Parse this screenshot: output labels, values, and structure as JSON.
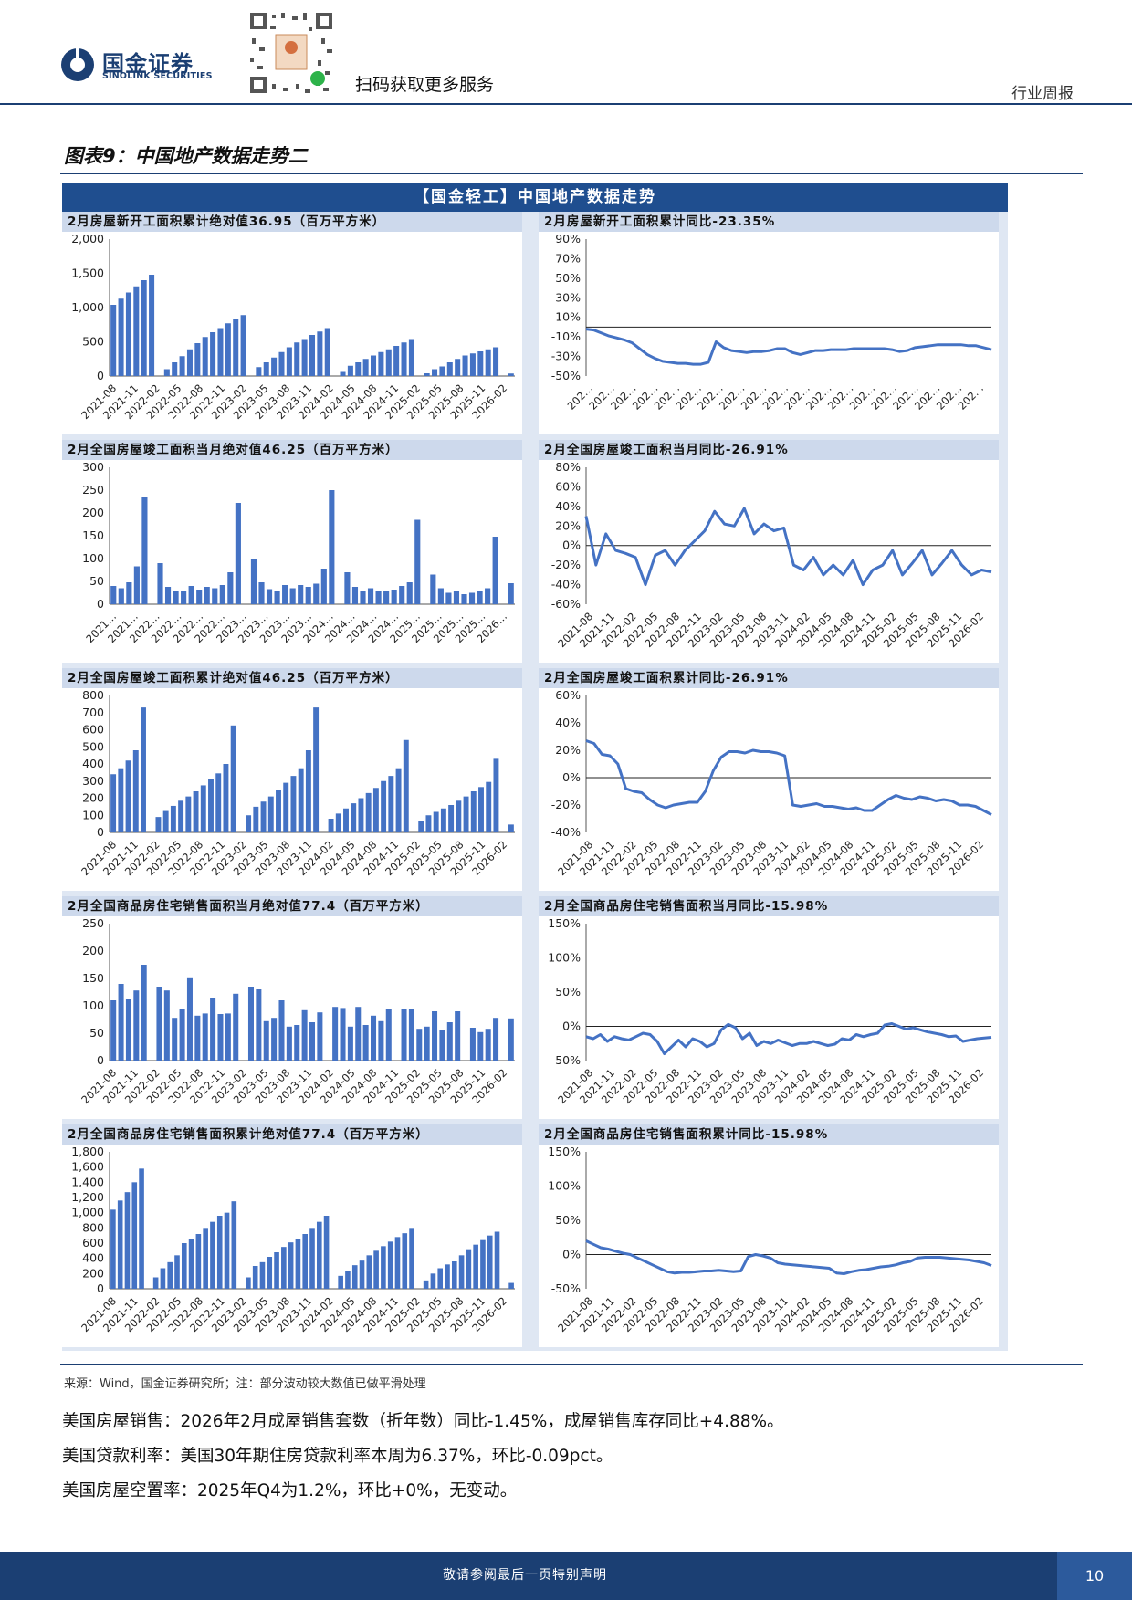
{
  "header": {
    "logo_cn": "国金证券",
    "logo_en": "SINOLINK SECURITIES",
    "qr_caption": "扫码获取更多服务",
    "doc_type": "行业周报"
  },
  "figure": {
    "title": "图表9：中国地产数据走势二",
    "panel_title": "【国金轻工】中国地产数据走势"
  },
  "colors": {
    "bar": "#4472c4",
    "line": "#4472c4",
    "navy": "#1b3f73"
  },
  "chart_data": [
    {
      "type": "bar",
      "title": "2月房屋新开工面积累计绝对值36.95（百万平方米）",
      "yticks": [
        "2,000",
        "1,500",
        "1,000",
        "500",
        "0"
      ],
      "ylim": [
        0,
        2000
      ],
      "xticks": [
        "2021-08",
        "2021-11",
        "2022-02",
        "2022-05",
        "2022-08",
        "2022-11",
        "2023-02",
        "2023-05",
        "2023-08",
        "2023-11",
        "2024-02",
        "2024-05",
        "2024-08",
        "2024-11",
        "2025-02",
        "2025-05",
        "2025-08",
        "2025-11",
        "2026-02"
      ],
      "start": "2021-08",
      "values": [
        1040,
        1130,
        1220,
        1310,
        1400,
        1480,
        null,
        100,
        200,
        290,
        390,
        480,
        570,
        640,
        700,
        770,
        840,
        890,
        null,
        130,
        200,
        270,
        350,
        420,
        490,
        540,
        600,
        650,
        700,
        null,
        60,
        150,
        200,
        250,
        300,
        350,
        390,
        440,
        490,
        540,
        null,
        40,
        100,
        140,
        200,
        250,
        300,
        330,
        360,
        390,
        420,
        null,
        37
      ]
    },
    {
      "type": "line",
      "title": "2月房屋新开工面积累计同比-23.35%",
      "yticks": [
        "90%",
        "70%",
        "50%",
        "30%",
        "10%",
        "-10%",
        "-30%",
        "-50%"
      ],
      "ylim": [
        -50,
        90
      ],
      "zero": 0,
      "xticks": [
        "202…",
        "202…",
        "202…",
        "202…",
        "202…",
        "202…",
        "202…",
        "202…",
        "202…",
        "202…",
        "202…",
        "202…",
        "202…",
        "202…",
        "202…",
        "202…",
        "202…",
        "202…",
        "202…"
      ],
      "values": [
        -2,
        -3,
        -6,
        -9,
        -11,
        -13,
        -16,
        -22,
        -28,
        -32,
        -35,
        -36,
        -37,
        -37,
        -38,
        -38,
        -36,
        -15,
        -21,
        -24,
        -25,
        -26,
        -25,
        -25,
        -24,
        -22,
        -22,
        -26,
        -28,
        -26,
        -24,
        -24,
        -23,
        -23,
        -23,
        -22,
        -22,
        -22,
        -22,
        -22,
        -23,
        -25,
        -24,
        -21,
        -20,
        -19,
        -18,
        -18,
        -18,
        -18,
        -19,
        -19,
        -21,
        -23
      ]
    },
    {
      "type": "bar",
      "title": "2月全国房屋竣工面积当月绝对值46.25（百万平方米）",
      "yticks": [
        "300",
        "250",
        "200",
        "150",
        "100",
        "50",
        "0"
      ],
      "ylim": [
        0,
        300
      ],
      "xticks": [
        "2021…",
        "2021…",
        "2022…",
        "2022…",
        "2022…",
        "2022…",
        "2023…",
        "2023…",
        "2023…",
        "2023…",
        "2024…",
        "2024…",
        "2024…",
        "2024…",
        "2025…",
        "2025…",
        "2025…",
        "2025…",
        "2026…"
      ],
      "values": [
        40,
        35,
        48,
        83,
        235,
        null,
        90,
        38,
        28,
        30,
        40,
        32,
        38,
        35,
        42,
        70,
        222,
        null,
        100,
        48,
        33,
        30,
        42,
        35,
        42,
        38,
        45,
        78,
        250,
        null,
        70,
        38,
        30,
        35,
        30,
        28,
        32,
        40,
        48,
        185,
        null,
        65,
        35,
        25,
        30,
        22,
        25,
        28,
        35,
        148,
        null,
        46
      ]
    },
    {
      "type": "line",
      "title": "2月全国房屋竣工面积当月同比-26.91%",
      "yticks": [
        "80%",
        "60%",
        "40%",
        "20%",
        "0%",
        "-20%",
        "-40%",
        "-60%"
      ],
      "ylim": [
        -60,
        80
      ],
      "zero": 0,
      "xticks": [
        "2021-08",
        "2021-11",
        "2022-02",
        "2022-05",
        "2022-08",
        "2022-11",
        "2023-02",
        "2023-05",
        "2023-08",
        "2023-11",
        "2024-02",
        "2024-05",
        "2024-08",
        "2024-11",
        "2025-02",
        "2025-05",
        "2025-08",
        "2025-11",
        "2026-02"
      ],
      "values": [
        30,
        -20,
        12,
        -5,
        -8,
        -12,
        -40,
        -10,
        -5,
        -20,
        -5,
        5,
        15,
        35,
        22,
        20,
        38,
        12,
        22,
        15,
        18,
        -20,
        -25,
        -12,
        -30,
        -20,
        -30,
        -15,
        -40,
        -25,
        -20,
        -5,
        -30,
        -18,
        -5,
        -30,
        -18,
        -5,
        -20,
        -30,
        -25,
        -27
      ]
    },
    {
      "type": "bar",
      "title": "2月全国房屋竣工面积累计绝对值46.25（百万平方米）",
      "yticks": [
        "800",
        "700",
        "600",
        "500",
        "400",
        "300",
        "200",
        "100",
        "0"
      ],
      "ylim": [
        0,
        800
      ],
      "xticks": [
        "2021-08",
        "2021-11",
        "2022-02",
        "2022-05",
        "2022-08",
        "2022-11",
        "2023-02",
        "2023-05",
        "2023-08",
        "2023-11",
        "2024-02",
        "2024-05",
        "2024-08",
        "2024-11",
        "2025-02",
        "2025-05",
        "2025-08",
        "2025-11",
        "2026-02"
      ],
      "values": [
        340,
        375,
        420,
        480,
        730,
        null,
        90,
        125,
        155,
        185,
        210,
        240,
        275,
        310,
        345,
        400,
        625,
        null,
        100,
        150,
        180,
        210,
        250,
        290,
        330,
        375,
        480,
        730,
        null,
        80,
        110,
        140,
        170,
        200,
        230,
        260,
        300,
        330,
        375,
        540,
        null,
        65,
        100,
        120,
        140,
        160,
        185,
        210,
        240,
        265,
        295,
        430,
        null,
        46
      ]
    },
    {
      "type": "line",
      "title": "2月全国房屋竣工面积累计同比-26.91%",
      "yticks": [
        "60%",
        "40%",
        "20%",
        "0%",
        "-20%",
        "-40%"
      ],
      "ylim": [
        -40,
        60
      ],
      "zero": 0,
      "xticks": [
        "2021-08",
        "2021-11",
        "2022-02",
        "2022-05",
        "2022-08",
        "2022-11",
        "2023-02",
        "2023-05",
        "2023-08",
        "2023-11",
        "2024-02",
        "2024-05",
        "2024-08",
        "2024-11",
        "2025-02",
        "2025-05",
        "2025-08",
        "2025-11",
        "2026-02"
      ],
      "values": [
        27,
        25,
        17,
        16,
        10,
        -8,
        -10,
        -11,
        -16,
        -20,
        -22,
        -20,
        -19,
        -18,
        -18,
        -10,
        5,
        15,
        19,
        19,
        18,
        20,
        19,
        19,
        18,
        16,
        -20,
        -21,
        -20,
        -19,
        -21,
        -21,
        -22,
        -23,
        -22,
        -24,
        -24,
        -20,
        -16,
        -13,
        -15,
        -16,
        -14,
        -15,
        -17,
        -16,
        -17,
        -20,
        -20,
        -21,
        -24,
        -27
      ]
    },
    {
      "type": "bar",
      "title": "2月全国商品房住宅销售面积当月绝对值77.4（百万平方米）",
      "yticks": [
        "250",
        "200",
        "150",
        "100",
        "50",
        "0"
      ],
      "ylim": [
        0,
        250
      ],
      "xticks": [
        "2021-08",
        "2021-11",
        "2022-02",
        "2022-05",
        "2022-08",
        "2022-11",
        "2023-02",
        "2023-05",
        "2023-08",
        "2023-11",
        "2024-02",
        "2024-05",
        "2024-08",
        "2024-11",
        "2025-02",
        "2025-05",
        "2025-08",
        "2025-11",
        "2026-02"
      ],
      "values": [
        110,
        140,
        112,
        128,
        175,
        null,
        135,
        128,
        78,
        95,
        152,
        82,
        86,
        115,
        85,
        86,
        122,
        null,
        135,
        130,
        72,
        78,
        110,
        62,
        65,
        92,
        70,
        88,
        null,
        98,
        96,
        62,
        98,
        65,
        82,
        72,
        95,
        null,
        94,
        95,
        58,
        62,
        90,
        55,
        70,
        90,
        null,
        60,
        52,
        58,
        78,
        null,
        77
      ]
    },
    {
      "type": "line",
      "title": "2月全国商品房住宅销售面积当月同比-15.98%",
      "yticks": [
        "150%",
        "100%",
        "50%",
        "0%",
        "-50%"
      ],
      "ylim": [
        -50,
        150
      ],
      "zero": 0,
      "xticks": [
        "2021-08",
        "2021-11",
        "2022-02",
        "2022-05",
        "2022-08",
        "2022-11",
        "2023-02",
        "2023-05",
        "2023-08",
        "2023-11",
        "2024-02",
        "2024-05",
        "2024-08",
        "2024-11",
        "2025-02",
        "2025-05",
        "2025-08",
        "2025-11",
        "2026-02"
      ],
      "values": [
        -15,
        -18,
        -12,
        -22,
        -15,
        -18,
        -20,
        -15,
        -10,
        -12,
        -22,
        -40,
        -30,
        -20,
        -30,
        -18,
        -22,
        -30,
        -25,
        -5,
        3,
        -2,
        -18,
        -10,
        -28,
        -22,
        -25,
        -20,
        -24,
        -28,
        -25,
        -25,
        -22,
        -25,
        -28,
        -26,
        -18,
        -20,
        -12,
        -15,
        -12,
        -10,
        2,
        4,
        0,
        -4,
        -2,
        -5,
        -8,
        -10,
        -12,
        -15,
        -14,
        -22,
        -20,
        -18,
        -17,
        -16
      ]
    },
    {
      "type": "bar",
      "title": "2月全国商品房住宅销售面积累计绝对值77.4（百万平方米）",
      "yticks": [
        "1,800",
        "1,600",
        "1,400",
        "1,200",
        "1,000",
        "800",
        "600",
        "400",
        "200",
        "0"
      ],
      "ylim": [
        0,
        1800
      ],
      "xticks": [
        "2021-08",
        "2021-11",
        "2022-02",
        "2022-05",
        "2022-08",
        "2022-11",
        "2023-02",
        "2023-05",
        "2023-08",
        "2023-11",
        "2024-02",
        "2024-05",
        "2024-08",
        "2024-11",
        "2025-02",
        "2025-05",
        "2025-08",
        "2025-11",
        "2026-02"
      ],
      "values": [
        1040,
        1160,
        1270,
        1400,
        1580,
        null,
        150,
        270,
        350,
        440,
        600,
        650,
        720,
        800,
        880,
        960,
        1000,
        1150,
        null,
        150,
        300,
        350,
        420,
        480,
        550,
        610,
        660,
        720,
        800,
        880,
        960,
        null,
        170,
        240,
        310,
        370,
        440,
        500,
        560,
        620,
        680,
        730,
        800,
        null,
        110,
        200,
        270,
        320,
        360,
        440,
        520,
        580,
        640,
        700,
        750,
        null,
        77
      ]
    },
    {
      "type": "line",
      "title": "2月全国商品房住宅销售面积累计同比-15.98%",
      "yticks": [
        "150%",
        "100%",
        "50%",
        "0%",
        "-50%"
      ],
      "ylim": [
        -50,
        150
      ],
      "zero": 0,
      "xticks": [
        "2021-08",
        "2021-11",
        "2022-02",
        "2022-05",
        "2022-08",
        "2022-11",
        "2023-02",
        "2023-05",
        "2023-08",
        "2023-11",
        "2024-02",
        "2024-05",
        "2024-08",
        "2024-11",
        "2025-02",
        "2025-05",
        "2025-08",
        "2025-11",
        "2026-02"
      ],
      "values": [
        20,
        15,
        10,
        8,
        5,
        2,
        0,
        -5,
        -10,
        -15,
        -20,
        -25,
        -27,
        -26,
        -26,
        -25,
        -24,
        -24,
        -23,
        -24,
        -25,
        -24,
        -3,
        0,
        -2,
        -5,
        -12,
        -14,
        -15,
        -16,
        -17,
        -18,
        -19,
        -20,
        -27,
        -28,
        -25,
        -23,
        -22,
        -20,
        -18,
        -17,
        -15,
        -12,
        -10,
        -5,
        -4,
        -4,
        -4,
        -5,
        -6,
        -7,
        -8,
        -10,
        -12,
        -16
      ]
    }
  ],
  "source_note": "来源：Wind，国金证券研究所；注：部分波动较大数值已做平滑处理",
  "paragraphs": [
    "美国房屋销售：2026年2月成屋销售套数（折年数）同比-1.45%，成屋销售库存同比+4.88%。",
    "美国贷款利率：美国30年期住房贷款利率本周为6.37%，环比-0.09pct。",
    "美国房屋空置率：2025年Q4为1.2%，环比+0%，无变动。"
  ],
  "footer": {
    "disclaimer": "敬请参阅最后一页特别声明",
    "page": "10"
  }
}
